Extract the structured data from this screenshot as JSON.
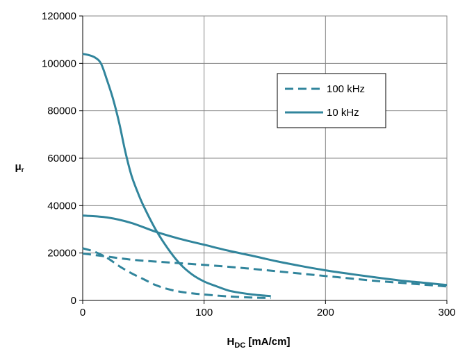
{
  "chart_data": {
    "type": "line",
    "xlabel": {
      "main": "H",
      "sub": "DC",
      "rest": " [mA/cm]"
    },
    "ylabel": {
      "main": "μ",
      "sub": "r"
    },
    "xlim": [
      0,
      300
    ],
    "ylim": [
      0,
      120000
    ],
    "xticks": [
      0,
      100,
      200,
      300
    ],
    "yticks": [
      0,
      20000,
      40000,
      60000,
      80000,
      100000,
      120000
    ],
    "grid": "vertical and horizontal at ticks",
    "legend": {
      "position": "top-right",
      "entries": [
        "100 kHz",
        "10 kHz"
      ]
    },
    "colors": {
      "series": "#31859c",
      "grid": "#868686",
      "frame": "#000000"
    },
    "series": [
      {
        "name": "100 kHz",
        "style": "dashed",
        "x": [
          0,
          20,
          40,
          60,
          80,
          100,
          120,
          140,
          160,
          180,
          200,
          220,
          240,
          260,
          280,
          300
        ],
        "y": [
          19800,
          18500,
          17200,
          16400,
          15700,
          15000,
          14200,
          13300,
          12300,
          11300,
          10300,
          9300,
          8300,
          7500,
          6700,
          5900
        ]
      },
      {
        "name": "100 kHz",
        "style": "dashed",
        "x": [
          0,
          10,
          20,
          30,
          40,
          50,
          60,
          70,
          80,
          90,
          100,
          120,
          140,
          155
        ],
        "y": [
          22000,
          20500,
          18000,
          14500,
          11500,
          9000,
          6500,
          4800,
          3700,
          3000,
          2500,
          1700,
          1200,
          1000
        ]
      },
      {
        "name": "10 kHz",
        "style": "solid",
        "x": [
          0,
          20,
          40,
          60,
          80,
          100,
          120,
          140,
          160,
          180,
          200,
          220,
          240,
          260,
          280,
          300
        ],
        "y": [
          35800,
          35000,
          32700,
          29000,
          26000,
          23500,
          21000,
          18800,
          16500,
          14500,
          12700,
          11200,
          9800,
          8500,
          7500,
          6500
        ]
      },
      {
        "name": "10 kHz",
        "style": "solid",
        "x": [
          0,
          5,
          10,
          15,
          20,
          25,
          30,
          35,
          40,
          45,
          50,
          60,
          70,
          80,
          90,
          100,
          110,
          120,
          130,
          140,
          155
        ],
        "y": [
          104000,
          103500,
          102500,
          100000,
          93000,
          85000,
          75000,
          63000,
          53000,
          46000,
          40000,
          30000,
          22000,
          15500,
          11000,
          8000,
          6000,
          4200,
          3200,
          2500,
          1800
        ]
      }
    ]
  }
}
